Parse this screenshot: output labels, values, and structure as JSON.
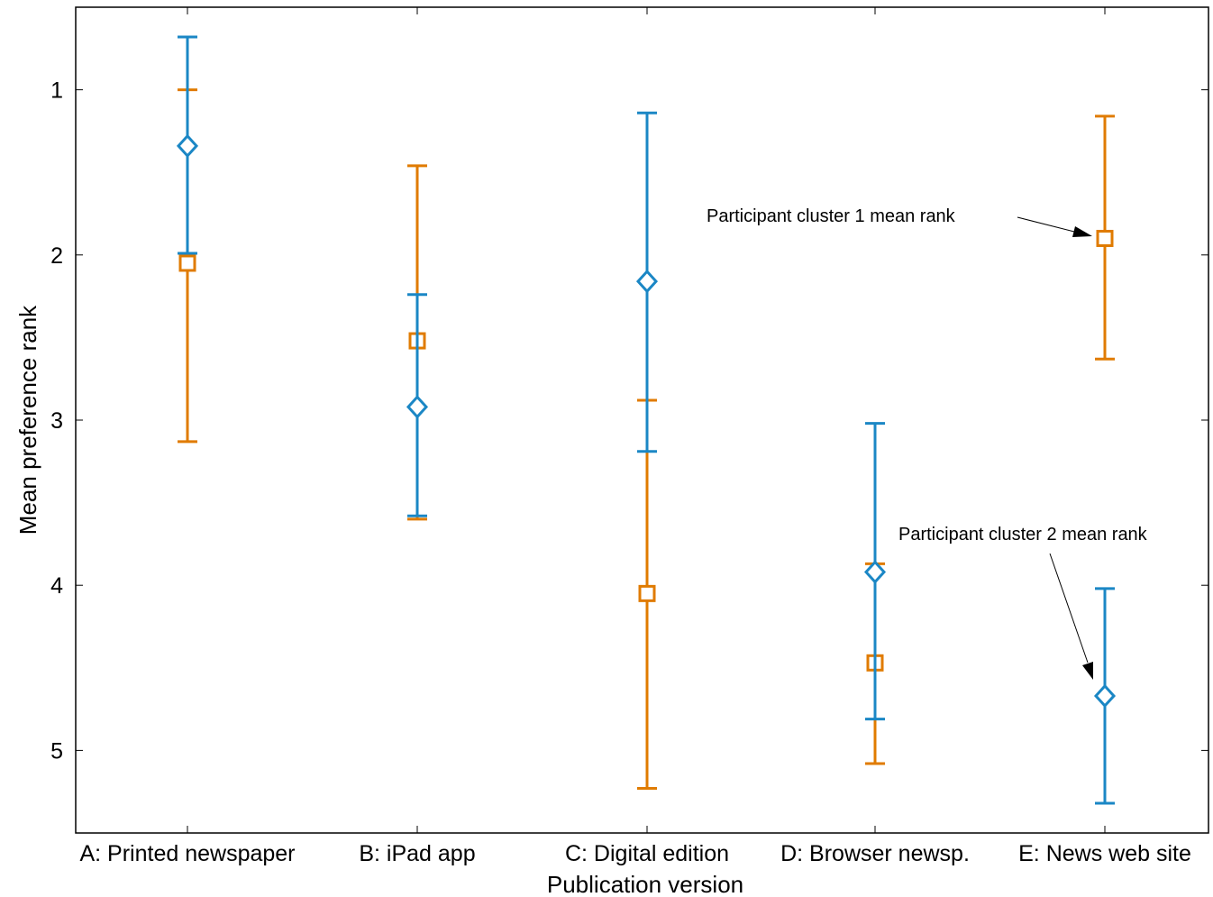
{
  "chart_data": {
    "type": "errorbar",
    "xlabel": "Publication version",
    "ylabel": "Mean preference rank",
    "y_axis_reversed": true,
    "ylim": [
      0.5,
      5.5
    ],
    "yticks": [
      1,
      2,
      3,
      4,
      5
    ],
    "categories": [
      "A: Printed newspaper",
      "B: iPad app",
      "C: Digital edition",
      "D: Browser newsp.",
      "E: News web site"
    ],
    "series": [
      {
        "name": "Participant cluster 1 mean rank",
        "color": "#E07B00",
        "marker": "square",
        "values": [
          2.05,
          2.52,
          4.05,
          4.47,
          1.9
        ],
        "lower": [
          1.0,
          1.46,
          2.88,
          3.87,
          1.16
        ],
        "upper": [
          3.13,
          3.6,
          5.23,
          5.08,
          2.63
        ]
      },
      {
        "name": "Participant cluster 2 mean rank",
        "color": "#1B87C5",
        "marker": "diamond",
        "values": [
          1.34,
          2.92,
          2.16,
          3.92,
          4.67
        ],
        "lower": [
          0.68,
          2.24,
          1.14,
          3.02,
          4.02
        ],
        "upper": [
          1.99,
          3.58,
          3.19,
          4.81,
          5.32
        ]
      }
    ],
    "annotations": [
      {
        "text": "Participant cluster 1 mean rank",
        "series": 0,
        "category": 4
      },
      {
        "text": "Participant cluster 2 mean rank",
        "series": 1,
        "category": 4
      }
    ],
    "grid": false,
    "legend": "none"
  }
}
